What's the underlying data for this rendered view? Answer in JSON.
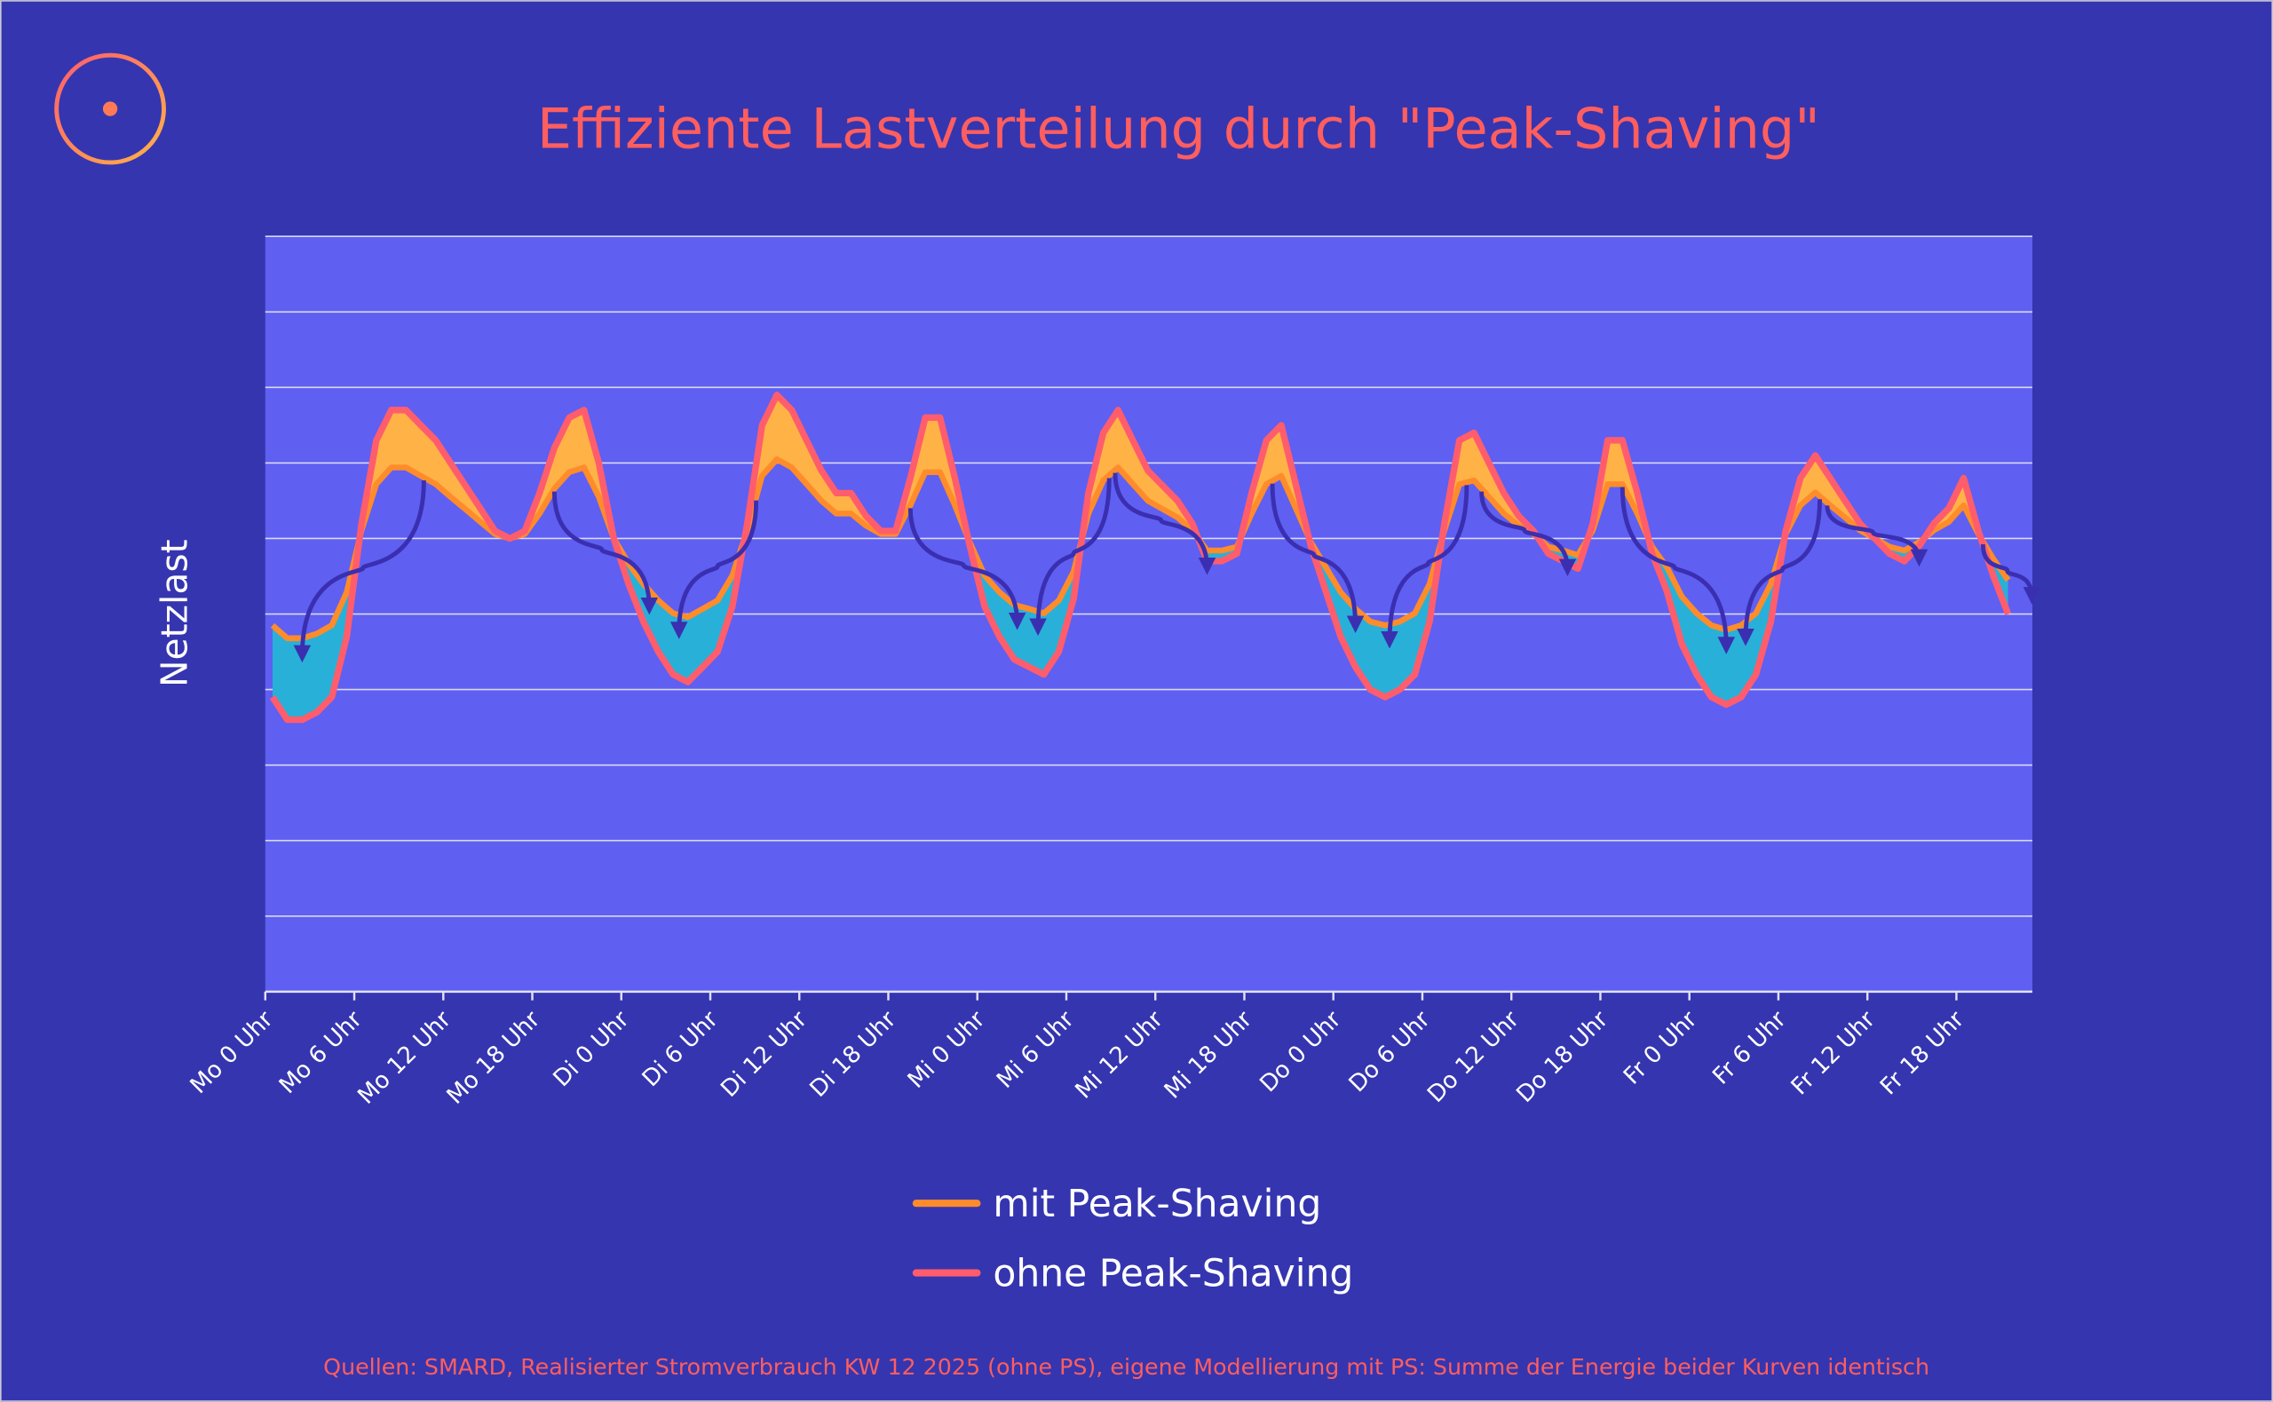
{
  "title": "Effiziente Lastverteilung durch \"Peak-Shaving\"",
  "source": "Quellen: SMARD, Realisierter Stromverbrauch KW 12 2025 (ohne PS), eigene Modellierung mit PS: Summe der Energie beider Kurven identisch",
  "colors": {
    "background": "#3535b0",
    "plot_background": "#5f5ff2",
    "title": "#ff5e5e",
    "ohne": "#ff5d6c",
    "mit": "#ff8c2a",
    "surplus_fill": "#ffb347",
    "deficit_fill": "#29b0d8",
    "arrow": "#3a2fb0"
  },
  "chart_data": {
    "type": "area",
    "title": "Effiziente Lastverteilung durch \"Peak-Shaving\"",
    "xlabel": "",
    "ylabel": "Netzlast",
    "ylim": [
      0,
      10
    ],
    "grid": true,
    "legend_position": "bottom-center",
    "x_unit": "hours since Mo 0 Uhr",
    "xlim": [
      0,
      119
    ],
    "tick_hours": [
      0,
      6,
      12,
      18,
      24,
      30,
      36,
      42,
      48,
      54,
      60,
      66,
      72,
      78,
      84,
      90,
      96,
      102,
      108,
      114
    ],
    "tick_labels": [
      "Mo 0 Uhr",
      "Mo 6 Uhr",
      "Mo 12 Uhr",
      "Mo 18 Uhr",
      "Di 0 Uhr",
      "Di 6 Uhr",
      "Di 12 Uhr",
      "Di 18 Uhr",
      "Mi 0 Uhr",
      "Mi 6 Uhr",
      "Mi 12 Uhr",
      "Mi 18 Uhr",
      "Do 0 Uhr",
      "Do 6 Uhr",
      "Do 12 Uhr",
      "Do 18 Uhr",
      "Fr 0 Uhr",
      "Fr 6 Uhr",
      "Fr 12 Uhr",
      "Fr 18 Uhr"
    ],
    "series": [
      {
        "name": "mit Peak-Shaving",
        "color": "#ff8c2a",
        "values": [
          4.85,
          4.68,
          4.68,
          4.74,
          4.85,
          5.29,
          6.11,
          6.72,
          6.94,
          6.94,
          6.83,
          6.72,
          6.55,
          6.39,
          6.22,
          6.06,
          6.0,
          6.06,
          6.33,
          6.66,
          6.88,
          6.94,
          6.55,
          6.0,
          5.67,
          5.4,
          5.18,
          5.01,
          4.96,
          5.07,
          5.18,
          5.51,
          6.11,
          6.83,
          7.05,
          6.94,
          6.72,
          6.5,
          6.33,
          6.33,
          6.17,
          6.06,
          6.06,
          6.44,
          6.88,
          6.88,
          6.44,
          5.95,
          5.51,
          5.29,
          5.12,
          5.07,
          5.01,
          5.18,
          5.56,
          6.33,
          6.77,
          6.94,
          6.72,
          6.5,
          6.39,
          6.28,
          6.11,
          5.84,
          5.84,
          5.89,
          6.33,
          6.72,
          6.83,
          6.39,
          5.95,
          5.62,
          5.29,
          5.07,
          4.9,
          4.85,
          4.9,
          5.01,
          5.4,
          6.11,
          6.72,
          6.77,
          6.55,
          6.33,
          6.17,
          6.06,
          5.89,
          5.84,
          5.78,
          6.11,
          6.72,
          6.72,
          6.33,
          5.89,
          5.62,
          5.23,
          5.01,
          4.85,
          4.79,
          4.85,
          5.01,
          5.4,
          6.06,
          6.44,
          6.61,
          6.44,
          6.28,
          6.11,
          6.0,
          5.89,
          5.84,
          5.95,
          6.11,
          6.22,
          6.44,
          6.06,
          5.73,
          5.45
        ]
      },
      {
        "name": "ohne Peak-Shaving",
        "color": "#ff5d6c",
        "values": [
          3.9,
          3.6,
          3.6,
          3.7,
          3.9,
          4.7,
          6.2,
          7.3,
          7.7,
          7.7,
          7.5,
          7.3,
          7.0,
          6.7,
          6.4,
          6.1,
          6.0,
          6.1,
          6.6,
          7.2,
          7.6,
          7.7,
          7.0,
          6.0,
          5.4,
          4.9,
          4.5,
          4.2,
          4.1,
          4.3,
          4.5,
          5.1,
          6.2,
          7.5,
          7.9,
          7.7,
          7.3,
          6.9,
          6.6,
          6.6,
          6.3,
          6.1,
          6.1,
          6.8,
          7.6,
          7.6,
          6.8,
          5.9,
          5.1,
          4.7,
          4.4,
          4.3,
          4.2,
          4.5,
          5.2,
          6.6,
          7.4,
          7.7,
          7.3,
          6.9,
          6.7,
          6.5,
          6.2,
          5.7,
          5.7,
          5.8,
          6.6,
          7.3,
          7.5,
          6.7,
          5.9,
          5.3,
          4.7,
          4.3,
          4.0,
          3.9,
          4.0,
          4.2,
          4.9,
          6.2,
          7.3,
          7.4,
          7.0,
          6.6,
          6.3,
          6.1,
          5.8,
          5.7,
          5.6,
          6.2,
          7.3,
          7.3,
          6.6,
          5.8,
          5.3,
          4.6,
          4.2,
          3.9,
          3.8,
          3.9,
          4.2,
          4.9,
          6.1,
          6.8,
          7.1,
          6.8,
          6.5,
          6.2,
          6.0,
          5.8,
          5.7,
          5.9,
          6.2,
          6.4,
          6.8,
          6.1,
          5.5,
          5.0
        ]
      }
    ],
    "shift_arrows": [
      {
        "from": 10.2,
        "to": 2
      },
      {
        "from": 19,
        "to": 25.4
      },
      {
        "from": 32.6,
        "to": 27.4
      },
      {
        "from": 43,
        "to": 50.2
      },
      {
        "from": 56.4,
        "to": 51.6
      },
      {
        "from": 56.8,
        "to": 63
      },
      {
        "from": 67.4,
        "to": 73
      },
      {
        "from": 80.5,
        "to": 75.3
      },
      {
        "from": 81.5,
        "to": 87.3
      },
      {
        "from": 91,
        "to": 98
      },
      {
        "from": 104.3,
        "to": 99.3
      },
      {
        "from": 104.8,
        "to": 111
      },
      {
        "from": 115.3,
        "to": 118.6
      }
    ]
  }
}
